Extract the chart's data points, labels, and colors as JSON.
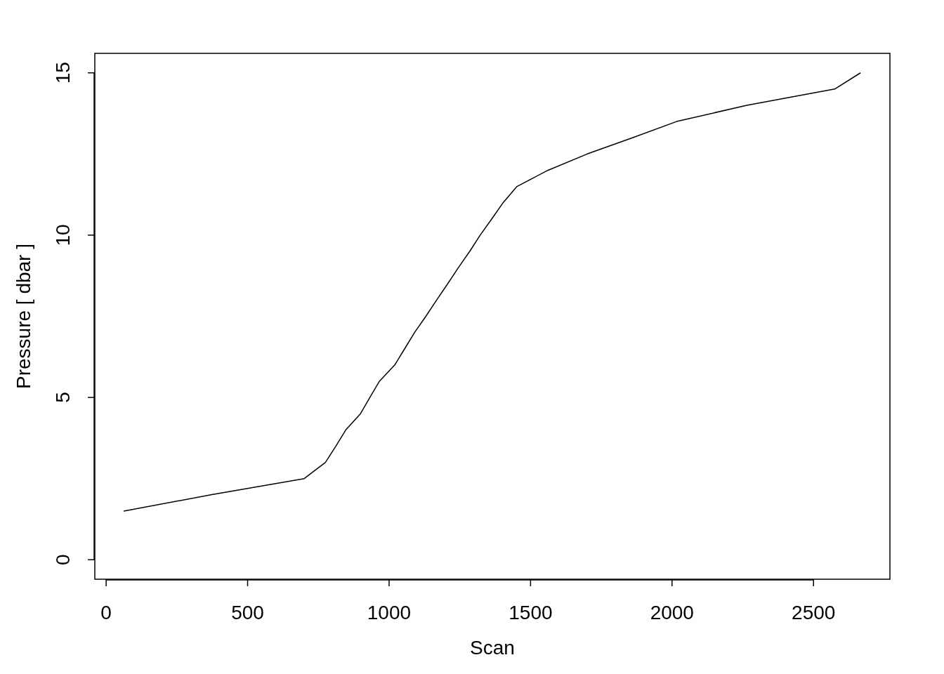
{
  "chart_data": {
    "type": "line",
    "xlabel": "Scan",
    "ylabel": "Pressure [ dbar ]",
    "x": [
      62,
      370,
      700,
      775,
      812,
      847,
      899,
      932,
      966,
      1020,
      1055,
      1090,
      1130,
      1168,
      1207,
      1245,
      1285,
      1322,
      1363,
      1403,
      1452,
      1562,
      1700,
      1860,
      2016,
      2264,
      2575,
      2666
    ],
    "series": [
      {
        "color": "#000000",
        "values": [
          1.5,
          2,
          2.5,
          3,
          3.5,
          4,
          4.5,
          5,
          5.5,
          6,
          6.5,
          7,
          7.5,
          8,
          8.5,
          9,
          9.5,
          10,
          10.5,
          11,
          11.5,
          12,
          12.5,
          13,
          13.5,
          14,
          14.5,
          15
        ]
      }
    ],
    "xlim": [
      -40,
      2770
    ],
    "xticks": [
      0,
      500,
      1000,
      1500,
      2000,
      2500
    ],
    "ylim": [
      -0.6,
      15.6
    ],
    "yticks": [
      0,
      5,
      10,
      15
    ],
    "grid": false,
    "marker": "none",
    "line_style": "solid"
  }
}
